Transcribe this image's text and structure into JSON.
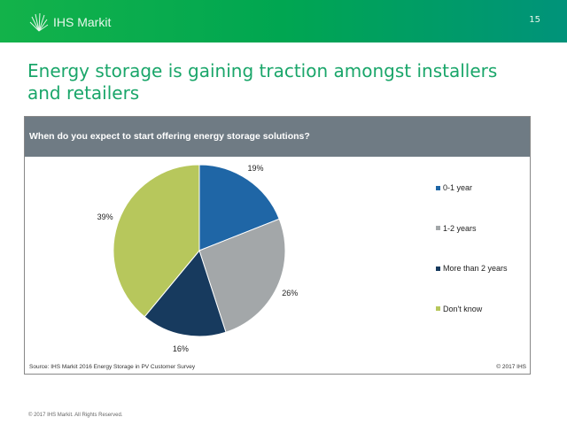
{
  "header": {
    "brand": "IHS Markit",
    "page_number": "15"
  },
  "title": "Energy storage is gaining traction amongst installers and retailers",
  "panel": {
    "question": "When do you expect to start offering energy storage solutions?",
    "source": "Source: IHS Markit 2016 Energy Storage in PV Customer Survey",
    "copyright": "© 2017 IHS"
  },
  "footer": "© 2017 IHS Markit. All Rights Reserved.",
  "chart_data": {
    "type": "pie",
    "title": "When do you expect to start offering energy storage solutions?",
    "categories": [
      "0-1 year",
      "1-2 years",
      "More than 2 years",
      "Don't know"
    ],
    "values": [
      19,
      26,
      16,
      39
    ],
    "labels": [
      "19%",
      "26%",
      "16%",
      "39%"
    ],
    "colors": [
      "#1f66a6",
      "#a3a7a9",
      "#173a5e",
      "#b7c75c"
    ],
    "legend_position": "right"
  }
}
